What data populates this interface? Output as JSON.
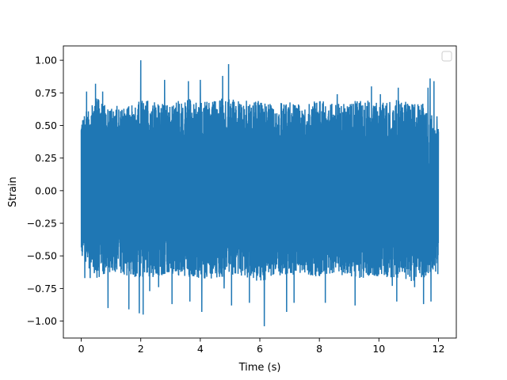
{
  "chart_data": {
    "type": "line",
    "title": "",
    "xlabel": "Time (s)",
    "ylabel": "Strain",
    "xlim": [
      -0.6,
      12.6
    ],
    "ylim": [
      -1.13,
      1.11
    ],
    "x_ticks": [
      {
        "value": 0,
        "label": "0"
      },
      {
        "value": 2,
        "label": "2"
      },
      {
        "value": 4,
        "label": "4"
      },
      {
        "value": 6,
        "label": "6"
      },
      {
        "value": 8,
        "label": "8"
      },
      {
        "value": 10,
        "label": "10"
      },
      {
        "value": 12,
        "label": "12"
      }
    ],
    "y_ticks": [
      {
        "value": 1.0,
        "label": "1.00"
      },
      {
        "value": 0.75,
        "label": "0.75"
      },
      {
        "value": 0.5,
        "label": "0.50"
      },
      {
        "value": 0.25,
        "label": "0.25"
      },
      {
        "value": 0.0,
        "label": "0.00"
      },
      {
        "value": -0.25,
        "label": "−0.25"
      },
      {
        "value": -0.5,
        "label": "−0.50"
      },
      {
        "value": -0.75,
        "label": "−0.75"
      },
      {
        "value": -1.0,
        "label": "−1.00"
      }
    ],
    "grid": false,
    "legend": {
      "placement": "upper-right",
      "entries": []
    },
    "series": [
      {
        "color": "#1f77b4",
        "x_range": [
          0,
          12
        ],
        "envelope_x": [
          0.0,
          0.5,
          1.0,
          1.5,
          2.0,
          2.5,
          3.0,
          3.5,
          4.0,
          4.5,
          5.0,
          5.5,
          6.0,
          6.5,
          7.0,
          7.5,
          8.0,
          8.5,
          9.0,
          9.5,
          10.0,
          10.5,
          11.0,
          11.5,
          12.0
        ],
        "upper_envelope": [
          0.55,
          0.72,
          0.63,
          0.65,
          0.7,
          0.68,
          0.66,
          0.72,
          0.68,
          0.7,
          0.72,
          0.66,
          0.7,
          0.67,
          0.68,
          0.66,
          0.7,
          0.66,
          0.68,
          0.7,
          0.68,
          0.7,
          0.68,
          0.7,
          0.48
        ],
        "lower_envelope": [
          -0.52,
          -0.68,
          -0.62,
          -0.66,
          -0.68,
          -0.66,
          -0.64,
          -0.66,
          -0.68,
          -0.68,
          -0.66,
          -0.66,
          -0.7,
          -0.66,
          -0.64,
          -0.66,
          -0.66,
          -0.64,
          -0.66,
          -0.68,
          -0.66,
          -0.68,
          -0.7,
          -0.68,
          -0.62
        ],
        "peaks": [
          [
            0.05,
            0.54
          ],
          [
            0.18,
            0.76
          ],
          [
            0.48,
            0.82
          ],
          [
            0.72,
            0.76
          ],
          [
            1.2,
            0.65
          ],
          [
            2.0,
            1.0
          ],
          [
            2.6,
            0.8
          ],
          [
            2.8,
            0.85
          ],
          [
            3.6,
            0.84
          ],
          [
            4.0,
            0.85
          ],
          [
            4.75,
            0.88
          ],
          [
            4.95,
            0.97
          ],
          [
            5.55,
            0.69
          ],
          [
            6.3,
            0.62
          ],
          [
            8.2,
            0.94
          ],
          [
            8.6,
            0.74
          ],
          [
            9.2,
            0.78
          ],
          [
            9.75,
            0.8
          ],
          [
            10.05,
            0.74
          ],
          [
            10.65,
            0.79
          ],
          [
            11.2,
            0.73
          ],
          [
            11.65,
            0.79
          ],
          [
            11.72,
            0.86
          ],
          [
            11.85,
            0.84
          ],
          [
            11.95,
            0.57
          ],
          [
            0.12,
            -0.67
          ],
          [
            0.3,
            -0.67
          ],
          [
            0.9,
            -0.9
          ],
          [
            1.6,
            -0.91
          ],
          [
            1.95,
            -0.94
          ],
          [
            2.08,
            -0.95
          ],
          [
            2.3,
            -0.77
          ],
          [
            2.6,
            -0.74
          ],
          [
            3.05,
            -0.87
          ],
          [
            3.65,
            -0.85
          ],
          [
            4.05,
            -0.93
          ],
          [
            4.8,
            -0.75
          ],
          [
            5.05,
            -0.88
          ],
          [
            5.65,
            -0.86
          ],
          [
            6.15,
            -1.04
          ],
          [
            6.9,
            -0.93
          ],
          [
            7.15,
            -0.86
          ],
          [
            8.2,
            -0.86
          ],
          [
            9.2,
            -0.88
          ],
          [
            10.45,
            -0.73
          ],
          [
            10.6,
            -0.85
          ],
          [
            11.2,
            -0.74
          ],
          [
            11.5,
            -0.87
          ],
          [
            11.75,
            -0.85
          ],
          [
            11.98,
            -0.64
          ]
        ]
      }
    ]
  }
}
